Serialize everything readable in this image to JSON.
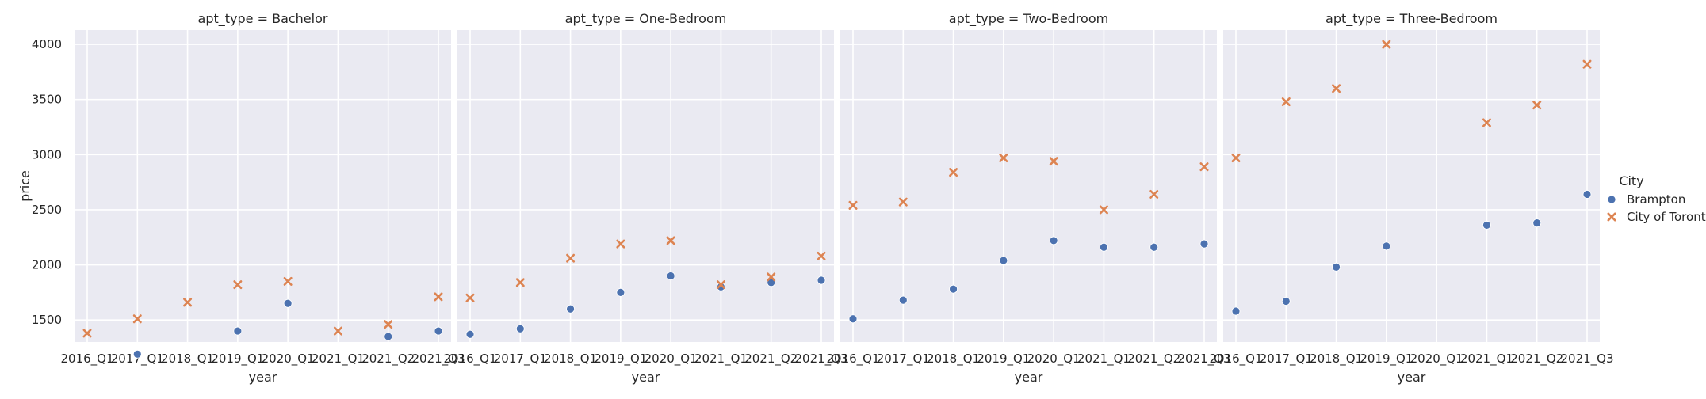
{
  "chart_data": {
    "type": "scatter",
    "facet_variable": "apt_type",
    "xlabel": "year",
    "ylabel": "price",
    "x_categories": [
      "2016_Q1",
      "2017_Q1",
      "2018_Q1",
      "2019_Q1",
      "2020_Q1",
      "2021_Q1",
      "2021_Q2",
      "2021_Q3"
    ],
    "yticks": [
      1500,
      2000,
      2500,
      3000,
      3500,
      4000
    ],
    "ylim": [
      1300,
      4130
    ],
    "grid": true,
    "legend": {
      "title": "City",
      "placement": "right",
      "entries": [
        {
          "name": "Brampton",
          "marker": "circle",
          "color": "#4c72b0"
        },
        {
          "name": "City of Toronto",
          "marker": "x",
          "color": "#dd8452"
        }
      ]
    },
    "facets": [
      {
        "title": "apt_type = Bachelor",
        "series": [
          {
            "name": "Brampton",
            "x": [
              "2017_Q1",
              "2019_Q1",
              "2020_Q1",
              "2021_Q2",
              "2021_Q3"
            ],
            "y": [
              1190,
              1400,
              1650,
              1350,
              1400
            ]
          },
          {
            "name": "City of Toronto",
            "x": [
              "2016_Q1",
              "2017_Q1",
              "2018_Q1",
              "2019_Q1",
              "2020_Q1",
              "2021_Q1",
              "2021_Q2",
              "2021_Q3"
            ],
            "y": [
              1380,
              1510,
              1660,
              1820,
              1850,
              1400,
              1460,
              1710
            ]
          }
        ]
      },
      {
        "title": "apt_type = One-Bedroom",
        "series": [
          {
            "name": "Brampton",
            "x": [
              "2016_Q1",
              "2017_Q1",
              "2018_Q1",
              "2019_Q1",
              "2020_Q1",
              "2021_Q1",
              "2021_Q2",
              "2021_Q3"
            ],
            "y": [
              1370,
              1420,
              1600,
              1750,
              1900,
              1800,
              1840,
              1860
            ]
          },
          {
            "name": "City of Toronto",
            "x": [
              "2016_Q1",
              "2017_Q1",
              "2018_Q1",
              "2019_Q1",
              "2020_Q1",
              "2021_Q1",
              "2021_Q2",
              "2021_Q3"
            ],
            "y": [
              1700,
              1840,
              2060,
              2190,
              2220,
              1820,
              1890,
              2080
            ]
          }
        ]
      },
      {
        "title": "apt_type = Two-Bedroom",
        "series": [
          {
            "name": "Brampton",
            "x": [
              "2016_Q1",
              "2017_Q1",
              "2018_Q1",
              "2019_Q1",
              "2020_Q1",
              "2021_Q1",
              "2021_Q2",
              "2021_Q3"
            ],
            "y": [
              1510,
              1680,
              1780,
              2040,
              2220,
              2160,
              2160,
              2190
            ]
          },
          {
            "name": "City of Toronto",
            "x": [
              "2016_Q1",
              "2017_Q1",
              "2018_Q1",
              "2019_Q1",
              "2020_Q1",
              "2021_Q1",
              "2021_Q2",
              "2021_Q3"
            ],
            "y": [
              2540,
              2570,
              2840,
              2970,
              2940,
              2500,
              2640,
              2890
            ]
          }
        ]
      },
      {
        "title": "apt_type = Three-Bedroom",
        "series": [
          {
            "name": "Brampton",
            "x": [
              "2016_Q1",
              "2017_Q1",
              "2018_Q1",
              "2019_Q1",
              "2021_Q1",
              "2021_Q2",
              "2021_Q3"
            ],
            "y": [
              1580,
              1670,
              1980,
              2170,
              2360,
              2380,
              2640
            ]
          },
          {
            "name": "City of Toronto",
            "x": [
              "2016_Q1",
              "2017_Q1",
              "2018_Q1",
              "2019_Q1",
              "2021_Q1",
              "2021_Q2",
              "2021_Q3"
            ],
            "y": [
              2970,
              3480,
              3600,
              4000,
              3290,
              3450,
              3820
            ]
          }
        ]
      }
    ]
  }
}
